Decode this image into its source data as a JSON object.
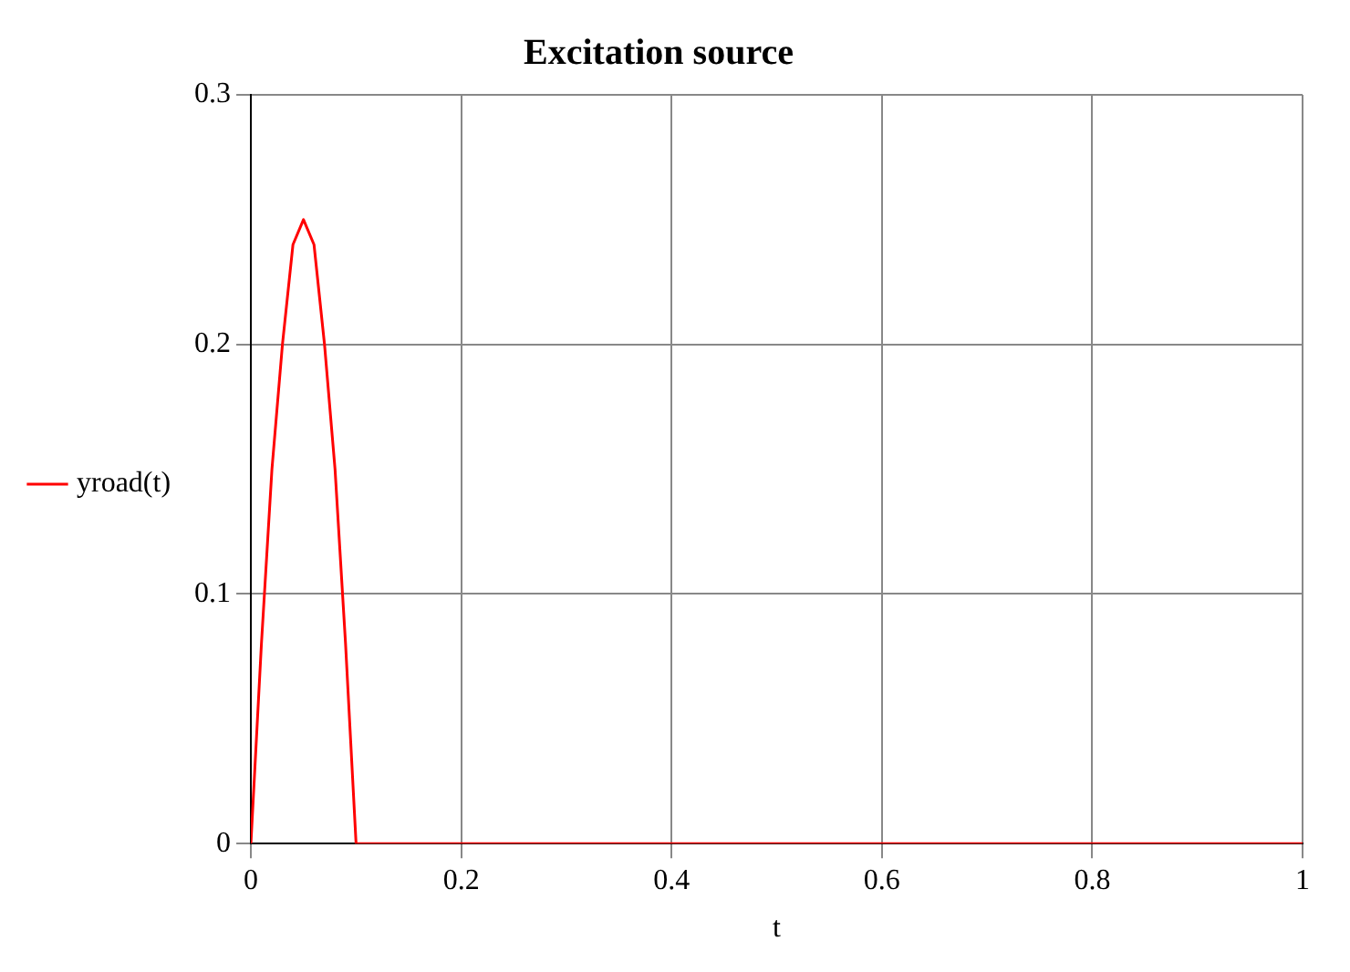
{
  "chart_data": {
    "type": "line",
    "title": "Excitation source",
    "xlabel": "t",
    "x": [
      0,
      0.01,
      0.02,
      0.03,
      0.04,
      0.05,
      0.06,
      0.07,
      0.08,
      0.09,
      0.1,
      1
    ],
    "series": [
      {
        "name": "yroad(t)",
        "color": "#ff0000",
        "values": [
          0,
          0.08,
          0.15,
          0.2,
          0.24,
          0.25,
          0.24,
          0.2,
          0.15,
          0.08,
          0,
          0
        ]
      }
    ],
    "xlim": [
      0,
      1
    ],
    "xticks": [
      0,
      0.2,
      0.4,
      0.6,
      0.8,
      1
    ],
    "ylim": [
      0,
      0.3
    ],
    "yticks": [
      0,
      0.1,
      0.2,
      0.3
    ],
    "grid": true,
    "legend": "left",
    "marker": "none",
    "line_style": "solid"
  }
}
